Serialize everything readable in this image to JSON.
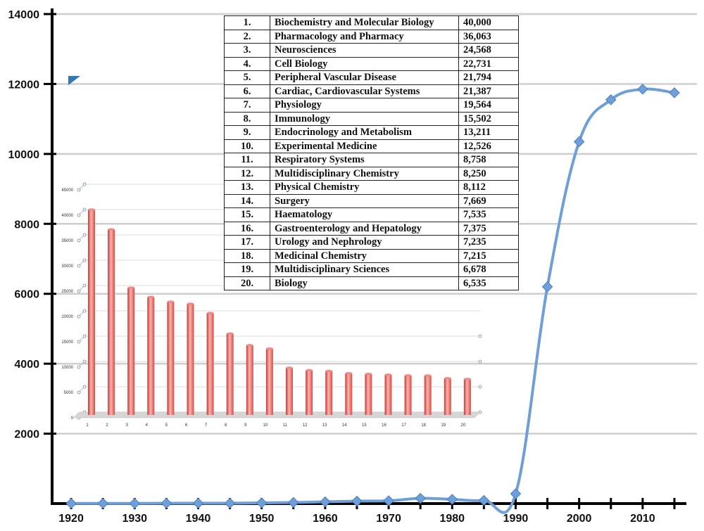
{
  "chart_data": [
    {
      "type": "line",
      "xlim": [
        1917,
        2017
      ],
      "ylim": [
        0,
        14000
      ],
      "y_ticks": [
        2000,
        4000,
        6000,
        8000,
        10000,
        12000,
        14000
      ],
      "x_ticks": [
        1920,
        1930,
        1940,
        1950,
        1960,
        1970,
        1980,
        1990,
        2000,
        2010
      ],
      "grid": true,
      "color": "#6f9fd8",
      "x": [
        1920,
        1925,
        1930,
        1935,
        1940,
        1945,
        1950,
        1955,
        1960,
        1965,
        1970,
        1975,
        1980,
        1985,
        1990,
        1995,
        2000,
        2005,
        2010,
        2015
      ],
      "y": [
        5,
        5,
        5,
        10,
        10,
        10,
        20,
        30,
        50,
        70,
        80,
        150,
        120,
        90,
        280,
        6200,
        10350,
        11550,
        11850,
        11750
      ]
    },
    {
      "type": "bar",
      "inset": true,
      "categories": [
        "1",
        "2",
        "3",
        "4",
        "5",
        "6",
        "7",
        "8",
        "9",
        "10",
        "11",
        "12",
        "13",
        "14",
        "15",
        "16",
        "17",
        "18",
        "19",
        "20"
      ],
      "values": [
        40000,
        36063,
        24568,
        22731,
        21794,
        21387,
        19564,
        15502,
        13211,
        12526,
        8758,
        8250,
        8112,
        7669,
        7535,
        7375,
        7235,
        7215,
        6678,
        6535
      ],
      "ylim": [
        0,
        45000
      ],
      "y_ticks": [
        "0",
        "5000",
        "10000",
        "15000",
        "20000",
        "25000",
        "30000",
        "35000",
        "40000",
        "45000"
      ],
      "color": "#e8605f"
    },
    {
      "type": "table",
      "rows": [
        {
          "rank": "1.",
          "field": "Biochemistry and Molecular Biology",
          "value": "40,000"
        },
        {
          "rank": "2.",
          "field": "Pharmacology and Pharmacy",
          "value": "36,063"
        },
        {
          "rank": "3.",
          "field": "Neurosciences",
          "value": "24,568"
        },
        {
          "rank": "4.",
          "field": "Cell Biology",
          "value": "22,731"
        },
        {
          "rank": "5.",
          "field": "Peripheral Vascular Disease",
          "value": "21,794"
        },
        {
          "rank": "6.",
          "field": "Cardiac, Cardiovascular Systems",
          "value": "21,387"
        },
        {
          "rank": "7.",
          "field": "Physiology",
          "value": "19,564"
        },
        {
          "rank": "8.",
          "field": "Immunology",
          "value": "15,502"
        },
        {
          "rank": "9.",
          "field": "Endocrinology and Metabolism",
          "value": "13,211"
        },
        {
          "rank": "10.",
          "field": "Experimental Medicine",
          "value": "12,526"
        },
        {
          "rank": "11.",
          "field": "Respiratory Systems",
          "value": "8,758"
        },
        {
          "rank": "12.",
          "field": "Multidisciplinary Chemistry",
          "value": "8,250"
        },
        {
          "rank": "13.",
          "field": "Physical Chemistry",
          "value": "8,112"
        },
        {
          "rank": "14.",
          "field": "Surgery",
          "value": "7,669"
        },
        {
          "rank": "15.",
          "field": "Haematology",
          "value": "7,535"
        },
        {
          "rank": "16.",
          "field": "Gastroenterology and Hepatology",
          "value": "7,375"
        },
        {
          "rank": "17.",
          "field": "Urology and Nephrology",
          "value": "7,235"
        },
        {
          "rank": "18.",
          "field": "Medicinal Chemistry",
          "value": "7,215"
        },
        {
          "rank": "19.",
          "field": "Multidisciplinary Sciences",
          "value": "6,678"
        },
        {
          "rank": "20.",
          "field": "Biology",
          "value": "6,535"
        }
      ]
    }
  ]
}
